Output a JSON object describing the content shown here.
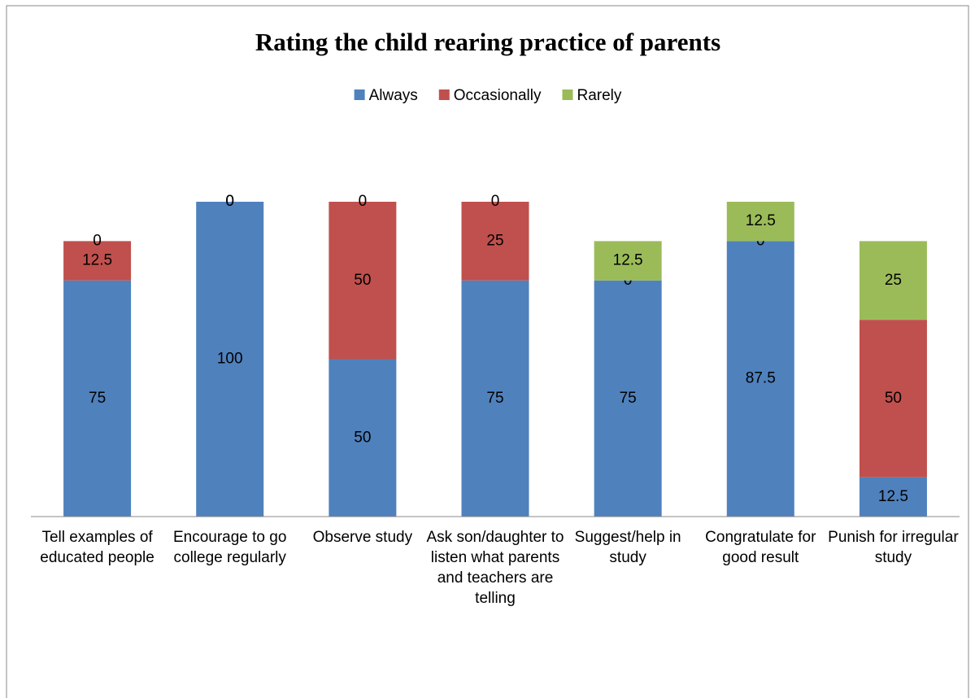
{
  "chart_data": {
    "type": "stacked_bar",
    "title": "Rating the child rearing practice of parents",
    "categories": [
      "Tell examples of educated people",
      "Encourage to go college regularly",
      "Observe study",
      "Ask son/daughter to listen what parents and teachers are telling",
      "Suggest/help in study",
      "Congratulate for good result",
      "Punish for irregular study"
    ],
    "series": [
      {
        "name": "Always",
        "color": "#4f81bd",
        "values": [
          75,
          100,
          50,
          75,
          75,
          87.5,
          12.5
        ]
      },
      {
        "name": "Occasionally",
        "color": "#c0504d",
        "values": [
          12.5,
          0,
          50,
          25,
          0,
          0,
          50
        ]
      },
      {
        "name": "Rarely",
        "color": "#9bbb59",
        "values": [
          0,
          0,
          0,
          0,
          12.5,
          12.5,
          25
        ]
      }
    ],
    "ylim": [
      0,
      100
    ],
    "legend": "top"
  }
}
